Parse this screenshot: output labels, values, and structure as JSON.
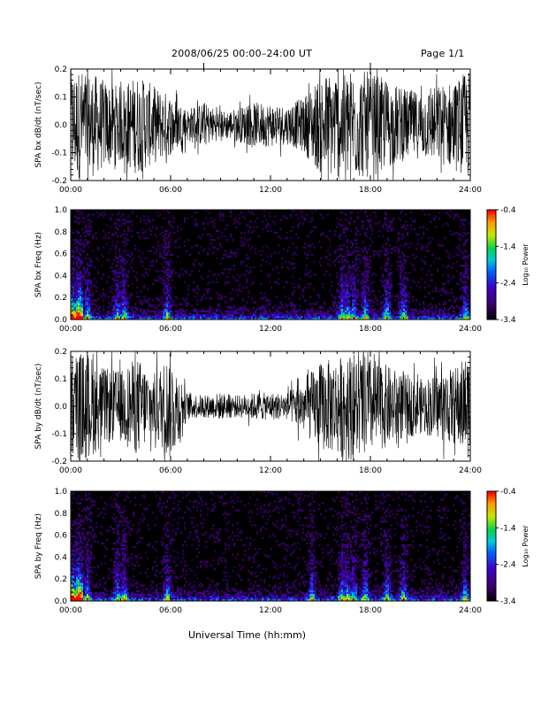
{
  "header": {
    "title": "2008/06/25  00:00–24:00 UT",
    "page": "Page 1/1"
  },
  "colors": {
    "background": "#ffffff",
    "trace": "#000000",
    "spectrogram_background": "#000000"
  },
  "x_axis_label": "Universal Time (hh:mm)",
  "chart_data": [
    {
      "type": "line",
      "ylabel": "SPA bx dB/dt (nT/sec)",
      "xlim": [
        0,
        24
      ],
      "ylim": [
        -0.2,
        0.2
      ],
      "x_ticks": [
        "00:00",
        "06:00",
        "12:00",
        "18:00",
        "24:00"
      ],
      "y_ticks": [
        "-0.2",
        "-0.1",
        "0.0",
        "0.1",
        "0.2"
      ],
      "series": [
        {
          "x": [
            0,
            1,
            2,
            3,
            4,
            5,
            6,
            7,
            8,
            9,
            10,
            11,
            12,
            13,
            14,
            15,
            16,
            17,
            18,
            19,
            20,
            21,
            22,
            23,
            24
          ],
          "envelope": [
            0.2,
            0.2,
            0.16,
            0.14,
            0.18,
            0.14,
            0.11,
            0.06,
            0.08,
            0.05,
            0.06,
            0.08,
            0.08,
            0.07,
            0.1,
            0.18,
            0.2,
            0.2,
            0.19,
            0.16,
            0.13,
            0.12,
            0.14,
            0.16,
            0.2
          ]
        }
      ]
    },
    {
      "type": "heatmap",
      "ylabel": "SPA bx Freq (Hz)",
      "xlim": [
        0,
        24
      ],
      "ylim": [
        0,
        1.0
      ],
      "x_ticks": [
        "00:00",
        "06:00",
        "12:00",
        "18:00",
        "24:00"
      ],
      "y_ticks": [
        "0.0",
        "0.2",
        "0.4",
        "0.6",
        "0.8",
        "1.0"
      ],
      "colorbar": {
        "label": "Log₁₀ Power",
        "range": [
          -3.4,
          -0.4
        ],
        "ticks": [
          "-0.4",
          "-1.4",
          "-2.4",
          "-3.4"
        ]
      },
      "active_hours": [
        0,
        0.5,
        1,
        2.8,
        3.2,
        5.8,
        16.3,
        16.6,
        17.0,
        17.7,
        19.0,
        20.0,
        23.7
      ]
    },
    {
      "type": "line",
      "ylabel": "SPA by dB/dt (nT/sec)",
      "xlim": [
        0,
        24
      ],
      "ylim": [
        -0.2,
        0.2
      ],
      "x_ticks": [
        "00:00",
        "06:00",
        "12:00",
        "18:00",
        "24:00"
      ],
      "y_ticks": [
        "-0.2",
        "-0.1",
        "0.0",
        "0.1",
        "0.2"
      ],
      "series": [
        {
          "x": [
            0,
            1,
            2,
            3,
            4,
            5,
            6,
            7,
            8,
            9,
            10,
            11,
            12,
            13,
            14,
            15,
            16,
            17,
            18,
            19,
            20,
            21,
            22,
            23,
            24
          ],
          "envelope": [
            0.2,
            0.2,
            0.14,
            0.13,
            0.18,
            0.12,
            0.2,
            0.05,
            0.04,
            0.05,
            0.04,
            0.05,
            0.05,
            0.05,
            0.1,
            0.16,
            0.18,
            0.2,
            0.18,
            0.15,
            0.12,
            0.1,
            0.12,
            0.14,
            0.2
          ]
        }
      ]
    },
    {
      "type": "heatmap",
      "ylabel": "SPA by Freq (Hz)",
      "xlim": [
        0,
        24
      ],
      "ylim": [
        0,
        1.0
      ],
      "x_ticks": [
        "00:00",
        "06:00",
        "12:00",
        "18:00",
        "24:00"
      ],
      "y_ticks": [
        "0.0",
        "0.2",
        "0.4",
        "0.6",
        "0.8",
        "1.0"
      ],
      "colorbar": {
        "label": "Log₁₀ Power",
        "range": [
          -3.4,
          -0.4
        ],
        "ticks": [
          "-0.4",
          "-1.4",
          "-2.4",
          "-3.4"
        ]
      },
      "active_hours": [
        0,
        0.5,
        1,
        2.8,
        3.2,
        5.8,
        14.5,
        16.3,
        16.6,
        17.0,
        17.7,
        19.0,
        20.0,
        23.7
      ]
    }
  ]
}
